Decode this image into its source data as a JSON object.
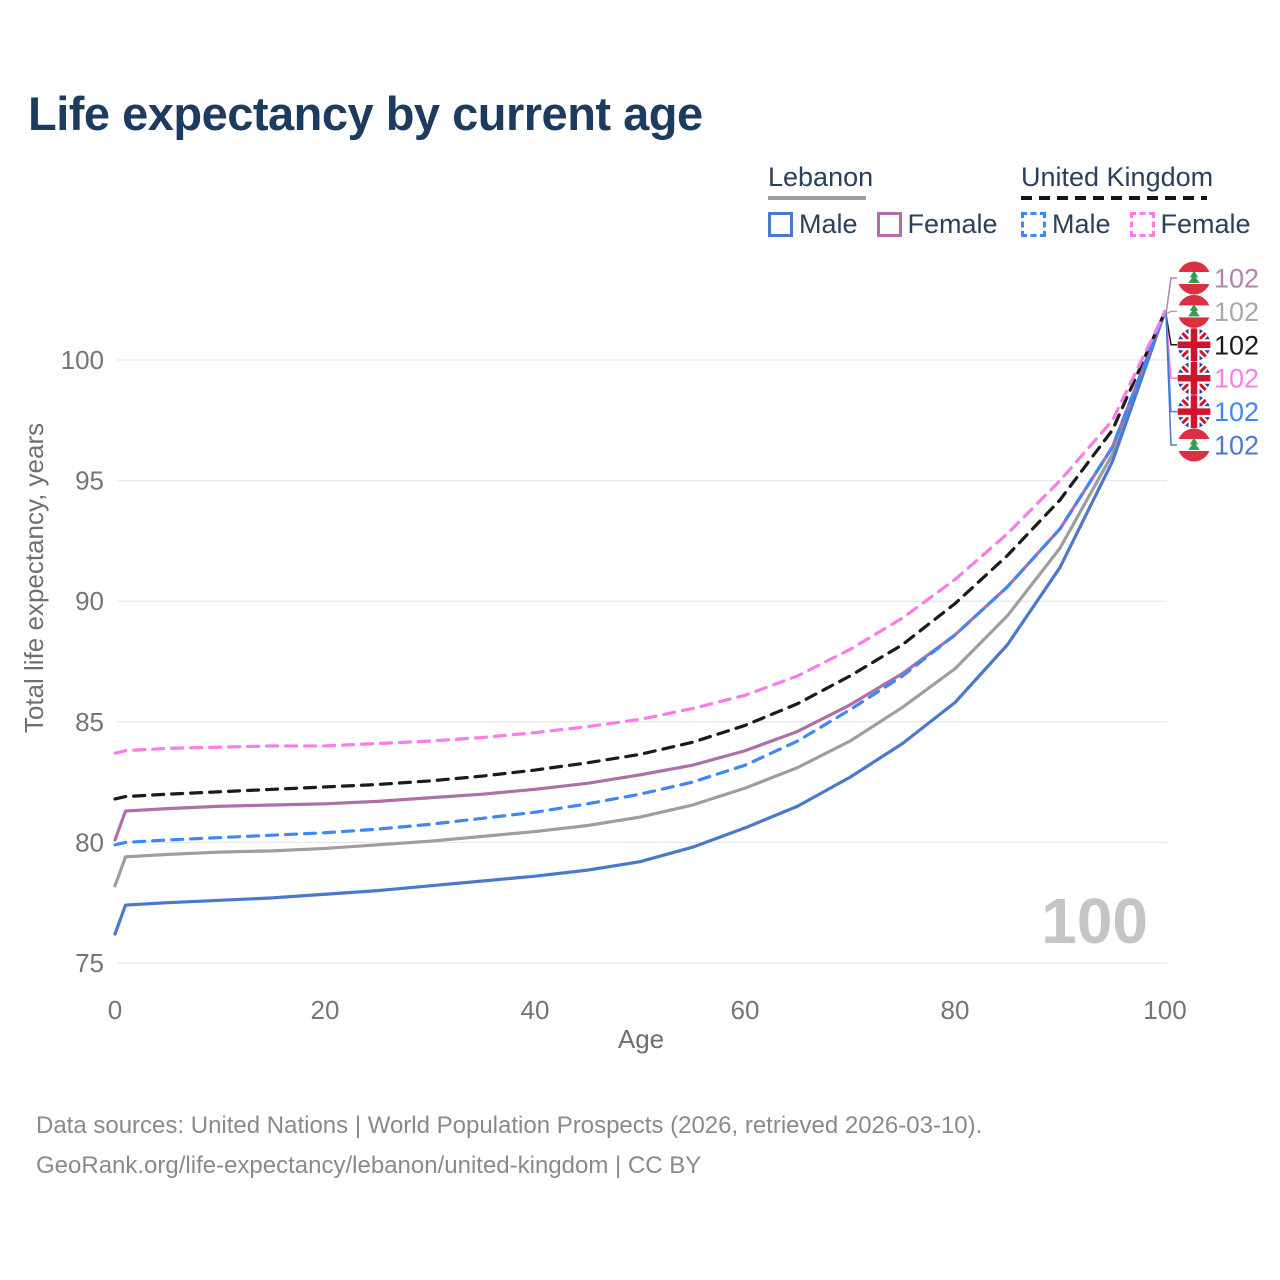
{
  "page": {
    "title": "Life expectancy by current age",
    "watermark": "100"
  },
  "legend": {
    "groups": [
      {
        "title": "Lebanon",
        "line_style": "solid",
        "underline_color": "#9e9e9e",
        "items": [
          {
            "label": "Male",
            "color": "#4a79cc"
          },
          {
            "label": "Female",
            "color": "#b06fa8"
          }
        ]
      },
      {
        "title": "United Kingdom",
        "line_style": "dashed",
        "underline_color": "#151515",
        "items": [
          {
            "label": "Male",
            "color": "#3f87f5"
          },
          {
            "label": "Female",
            "color": "#fb7ce8"
          }
        ]
      }
    ]
  },
  "chart_data": {
    "type": "line",
    "title": "Life expectancy by current age",
    "xlabel": "Age",
    "ylabel": "Total life expectancy, years",
    "xlim": [
      0,
      100
    ],
    "ylim": [
      75,
      102
    ],
    "xticks": [
      0,
      20,
      40,
      60,
      80,
      100
    ],
    "yticks": [
      75,
      80,
      85,
      90,
      95,
      100
    ],
    "grid": "horizontal",
    "legend_position": "top-right",
    "x": [
      0,
      1,
      5,
      10,
      15,
      20,
      25,
      30,
      35,
      40,
      45,
      50,
      55,
      60,
      65,
      70,
      75,
      80,
      85,
      90,
      95,
      100
    ],
    "series": [
      {
        "id": "lebanon-total",
        "name": "Lebanon Both sexes",
        "country": "Lebanon",
        "color": "#9e9e9e",
        "dash": "solid",
        "values": [
          78.2,
          79.4,
          79.5,
          79.6,
          79.65,
          79.75,
          79.9,
          80.05,
          80.25,
          80.45,
          80.7,
          81.05,
          81.55,
          82.25,
          83.1,
          84.2,
          85.6,
          87.2,
          89.4,
          92.2,
          96.1,
          102
        ]
      },
      {
        "id": "lebanon-male",
        "name": "Lebanon Male",
        "country": "Lebanon",
        "color": "#4a79cc",
        "dash": "solid",
        "values": [
          76.2,
          77.4,
          77.5,
          77.6,
          77.7,
          77.85,
          78.0,
          78.2,
          78.4,
          78.6,
          78.85,
          79.2,
          79.8,
          80.6,
          81.5,
          82.7,
          84.1,
          85.8,
          88.2,
          91.4,
          95.8,
          102
        ]
      },
      {
        "id": "lebanon-female",
        "name": "Lebanon Female",
        "country": "Lebanon",
        "color": "#b06fa8",
        "dash": "solid",
        "values": [
          80.1,
          81.3,
          81.4,
          81.5,
          81.55,
          81.6,
          81.7,
          81.85,
          82.0,
          82.2,
          82.45,
          82.8,
          83.2,
          83.8,
          84.6,
          85.7,
          87.0,
          88.6,
          90.6,
          93.0,
          96.4,
          102
        ]
      },
      {
        "id": "uk-total",
        "name": "United Kingdom Both sexes",
        "country": "United Kingdom",
        "color": "#1b1b1b",
        "dash": "dashed",
        "values": [
          81.8,
          81.9,
          82.0,
          82.1,
          82.2,
          82.3,
          82.4,
          82.55,
          82.75,
          83.0,
          83.3,
          83.65,
          84.15,
          84.85,
          85.75,
          86.9,
          88.2,
          89.9,
          91.9,
          94.2,
          97.1,
          102
        ]
      },
      {
        "id": "uk-male",
        "name": "United Kingdom Male",
        "country": "United Kingdom",
        "color": "#3f87f5",
        "dash": "dashed",
        "values": [
          79.9,
          80.0,
          80.1,
          80.2,
          80.3,
          80.4,
          80.55,
          80.75,
          81.0,
          81.25,
          81.6,
          82.0,
          82.5,
          83.2,
          84.2,
          85.5,
          86.9,
          88.6,
          90.6,
          93.0,
          96.4,
          102
        ]
      },
      {
        "id": "uk-female",
        "name": "United Kingdom Female",
        "country": "United Kingdom",
        "color": "#fb7ce8",
        "dash": "dashed",
        "values": [
          83.7,
          83.8,
          83.9,
          83.95,
          84.0,
          84.0,
          84.1,
          84.2,
          84.35,
          84.55,
          84.8,
          85.1,
          85.55,
          86.1,
          86.9,
          88.0,
          89.3,
          90.9,
          92.8,
          95.0,
          97.5,
          102
        ]
      }
    ],
    "end_labels": [
      {
        "flag": "lebanon",
        "series": "lebanon-female",
        "text": "102",
        "color": "#b183ae"
      },
      {
        "flag": "lebanon",
        "series": "lebanon-total",
        "text": "102",
        "color": "#a8a8a8"
      },
      {
        "flag": "uk",
        "series": "uk-total",
        "text": "102",
        "color": "#1b1b1b"
      },
      {
        "flag": "uk",
        "series": "uk-female",
        "text": "102",
        "color": "#fb7ce8"
      },
      {
        "flag": "uk",
        "series": "uk-male",
        "text": "102",
        "color": "#3f87f5"
      },
      {
        "flag": "lebanon",
        "series": "lebanon-male",
        "text": "102",
        "color": "#4a79cc"
      }
    ]
  },
  "footer": {
    "line1": "Data sources: United Nations | World Population Prospects (2026, retrieved 2026-03-10).",
    "line2": "GeoRank.org/life-expectancy/lebanon/united-kingdom | CC BY"
  }
}
